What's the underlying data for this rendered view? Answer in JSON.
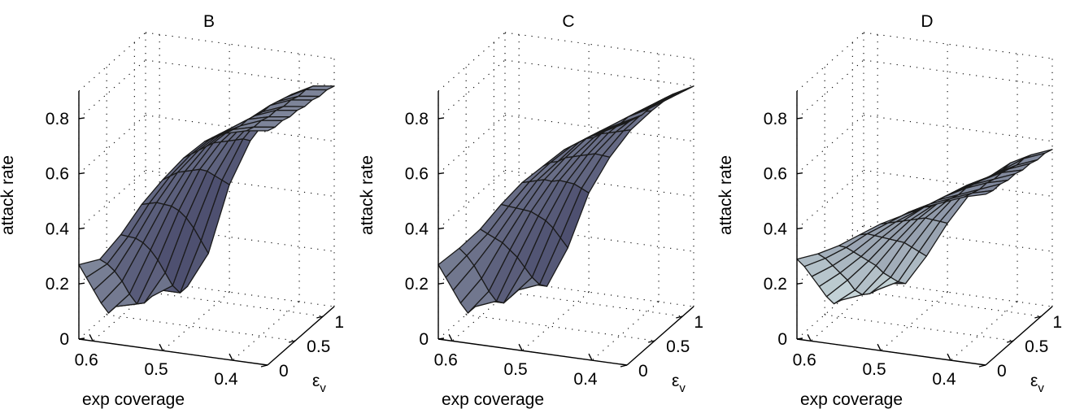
{
  "chart_data": [
    {
      "type": "surface",
      "title": "B",
      "xlabel": "exp coverage",
      "ylabel": "ε_v",
      "zlabel": "attack rate",
      "x_ticks": [
        0.6,
        0.5,
        0.4
      ],
      "y_ticks": [
        0,
        0.5,
        1
      ],
      "z_ticks": [
        0,
        0.2,
        0.4,
        0.6,
        0.8
      ],
      "xlim": [
        0.35,
        0.62
      ],
      "ylim": [
        0,
        1.2
      ],
      "zlim": [
        0,
        0.9
      ],
      "x": [
        0.62,
        0.59,
        0.56,
        0.53,
        0.5,
        0.47,
        0.44,
        0.41,
        0.38,
        0.35
      ],
      "y": [
        0,
        0.133,
        0.267,
        0.4,
        0.533,
        0.667,
        0.8,
        0.933,
        1.067,
        1.2
      ],
      "z": [
        [
          0.27,
          0.3,
          0.4,
          0.52,
          0.62,
          0.71,
          0.78,
          0.82,
          0.84,
          0.85
        ],
        [
          0.2,
          0.26,
          0.37,
          0.5,
          0.61,
          0.7,
          0.77,
          0.81,
          0.83,
          0.84
        ],
        [
          0.13,
          0.21,
          0.34,
          0.48,
          0.6,
          0.69,
          0.76,
          0.8,
          0.83,
          0.84
        ],
        [
          0.06,
          0.15,
          0.3,
          0.45,
          0.58,
          0.68,
          0.75,
          0.8,
          0.82,
          0.83
        ],
        [
          0.0,
          0.08,
          0.25,
          0.42,
          0.56,
          0.67,
          0.74,
          0.79,
          0.82,
          0.83
        ],
        [
          0.0,
          0.02,
          0.19,
          0.38,
          0.54,
          0.65,
          0.73,
          0.78,
          0.81,
          0.82
        ],
        [
          0.0,
          0.0,
          0.12,
          0.33,
          0.51,
          0.63,
          0.72,
          0.78,
          0.81,
          0.82
        ],
        [
          0.0,
          0.0,
          0.05,
          0.27,
          0.47,
          0.61,
          0.7,
          0.77,
          0.8,
          0.81
        ],
        [
          0.0,
          0.0,
          0.0,
          0.2,
          0.43,
          0.59,
          0.69,
          0.76,
          0.8,
          0.81
        ],
        [
          0.0,
          0.0,
          0.0,
          0.13,
          0.39,
          0.56,
          0.67,
          0.75,
          0.79,
          0.8
        ]
      ]
    },
    {
      "type": "surface",
      "title": "C",
      "xlabel": "exp coverage",
      "ylabel": "ε_v",
      "zlabel": "attack rate",
      "x_ticks": [
        0.6,
        0.5,
        0.4
      ],
      "y_ticks": [
        0,
        0.5,
        1
      ],
      "z_ticks": [
        0,
        0.2,
        0.4,
        0.6,
        0.8
      ],
      "xlim": [
        0.35,
        0.62
      ],
      "ylim": [
        0,
        1.2
      ],
      "zlim": [
        0,
        0.9
      ],
      "x": [
        0.62,
        0.59,
        0.56,
        0.53,
        0.5,
        0.47,
        0.44,
        0.41,
        0.38,
        0.35
      ],
      "y": [
        0,
        0.133,
        0.267,
        0.4,
        0.533,
        0.667,
        0.8,
        0.933,
        1.067,
        1.2
      ],
      "z": [
        [
          0.27,
          0.34,
          0.42,
          0.52,
          0.61,
          0.68,
          0.75,
          0.8,
          0.84,
          0.88
        ],
        [
          0.2,
          0.29,
          0.38,
          0.49,
          0.59,
          0.67,
          0.74,
          0.79,
          0.83,
          0.87
        ],
        [
          0.13,
          0.23,
          0.34,
          0.46,
          0.57,
          0.65,
          0.73,
          0.78,
          0.82,
          0.86
        ],
        [
          0.06,
          0.16,
          0.3,
          0.43,
          0.55,
          0.64,
          0.72,
          0.77,
          0.82,
          0.86
        ],
        [
          0.0,
          0.09,
          0.25,
          0.4,
          0.52,
          0.62,
          0.7,
          0.76,
          0.81,
          0.85
        ],
        [
          0.0,
          0.03,
          0.2,
          0.36,
          0.5,
          0.6,
          0.69,
          0.75,
          0.8,
          0.84
        ],
        [
          0.0,
          0.0,
          0.14,
          0.32,
          0.47,
          0.58,
          0.67,
          0.74,
          0.79,
          0.83
        ],
        [
          0.0,
          0.0,
          0.08,
          0.27,
          0.44,
          0.56,
          0.65,
          0.72,
          0.78,
          0.82
        ],
        [
          0.0,
          0.0,
          0.03,
          0.21,
          0.4,
          0.53,
          0.63,
          0.71,
          0.77,
          0.81
        ],
        [
          0.0,
          0.0,
          0.0,
          0.15,
          0.36,
          0.5,
          0.61,
          0.69,
          0.76,
          0.8
        ]
      ]
    },
    {
      "type": "surface",
      "title": "D",
      "xlabel": "exp coverage",
      "ylabel": "ε_v",
      "zlabel": "attack rate",
      "x_ticks": [
        0.6,
        0.5,
        0.4
      ],
      "y_ticks": [
        0,
        0.5,
        1
      ],
      "z_ticks": [
        0,
        0.2,
        0.4,
        0.6,
        0.8
      ],
      "xlim": [
        0.35,
        0.62
      ],
      "ylim": [
        0,
        1.2
      ],
      "zlim": [
        0,
        0.9
      ],
      "x": [
        0.62,
        0.59,
        0.56,
        0.53,
        0.5,
        0.47,
        0.44,
        0.41,
        0.38,
        0.35
      ],
      "y": [
        0,
        0.133,
        0.267,
        0.4,
        0.533,
        0.667,
        0.8,
        0.933,
        1.067,
        1.2
      ],
      "z": [
        [
          0.29,
          0.32,
          0.36,
          0.41,
          0.46,
          0.5,
          0.54,
          0.57,
          0.6,
          0.62
        ],
        [
          0.24,
          0.28,
          0.33,
          0.39,
          0.44,
          0.49,
          0.53,
          0.56,
          0.59,
          0.61
        ],
        [
          0.18,
          0.23,
          0.29,
          0.36,
          0.42,
          0.47,
          0.52,
          0.55,
          0.58,
          0.61
        ],
        [
          0.12,
          0.18,
          0.25,
          0.33,
          0.4,
          0.46,
          0.51,
          0.55,
          0.58,
          0.6
        ],
        [
          0.06,
          0.13,
          0.21,
          0.3,
          0.38,
          0.44,
          0.5,
          0.54,
          0.57,
          0.6
        ],
        [
          0.01,
          0.07,
          0.17,
          0.27,
          0.36,
          0.43,
          0.49,
          0.53,
          0.57,
          0.59
        ],
        [
          0.0,
          0.03,
          0.12,
          0.24,
          0.34,
          0.41,
          0.48,
          0.52,
          0.56,
          0.59
        ],
        [
          0.0,
          0.01,
          0.08,
          0.2,
          0.31,
          0.4,
          0.46,
          0.51,
          0.55,
          0.58
        ],
        [
          0.0,
          0.0,
          0.04,
          0.16,
          0.28,
          0.38,
          0.45,
          0.5,
          0.55,
          0.58
        ],
        [
          0.0,
          0.0,
          0.01,
          0.12,
          0.25,
          0.36,
          0.44,
          0.5,
          0.54,
          0.57
        ]
      ]
    }
  ]
}
